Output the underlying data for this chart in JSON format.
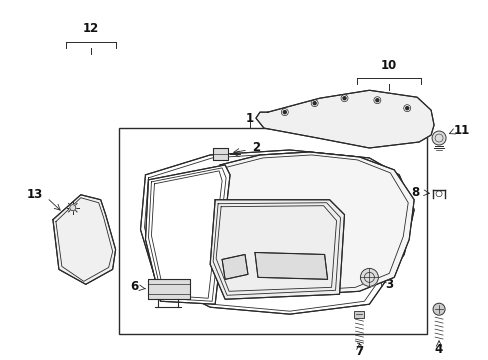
{
  "background_color": "#ffffff",
  "fig_width": 4.89,
  "fig_height": 3.6,
  "dpi": 100,
  "line_color": "#2a2a2a",
  "lw": 0.8
}
